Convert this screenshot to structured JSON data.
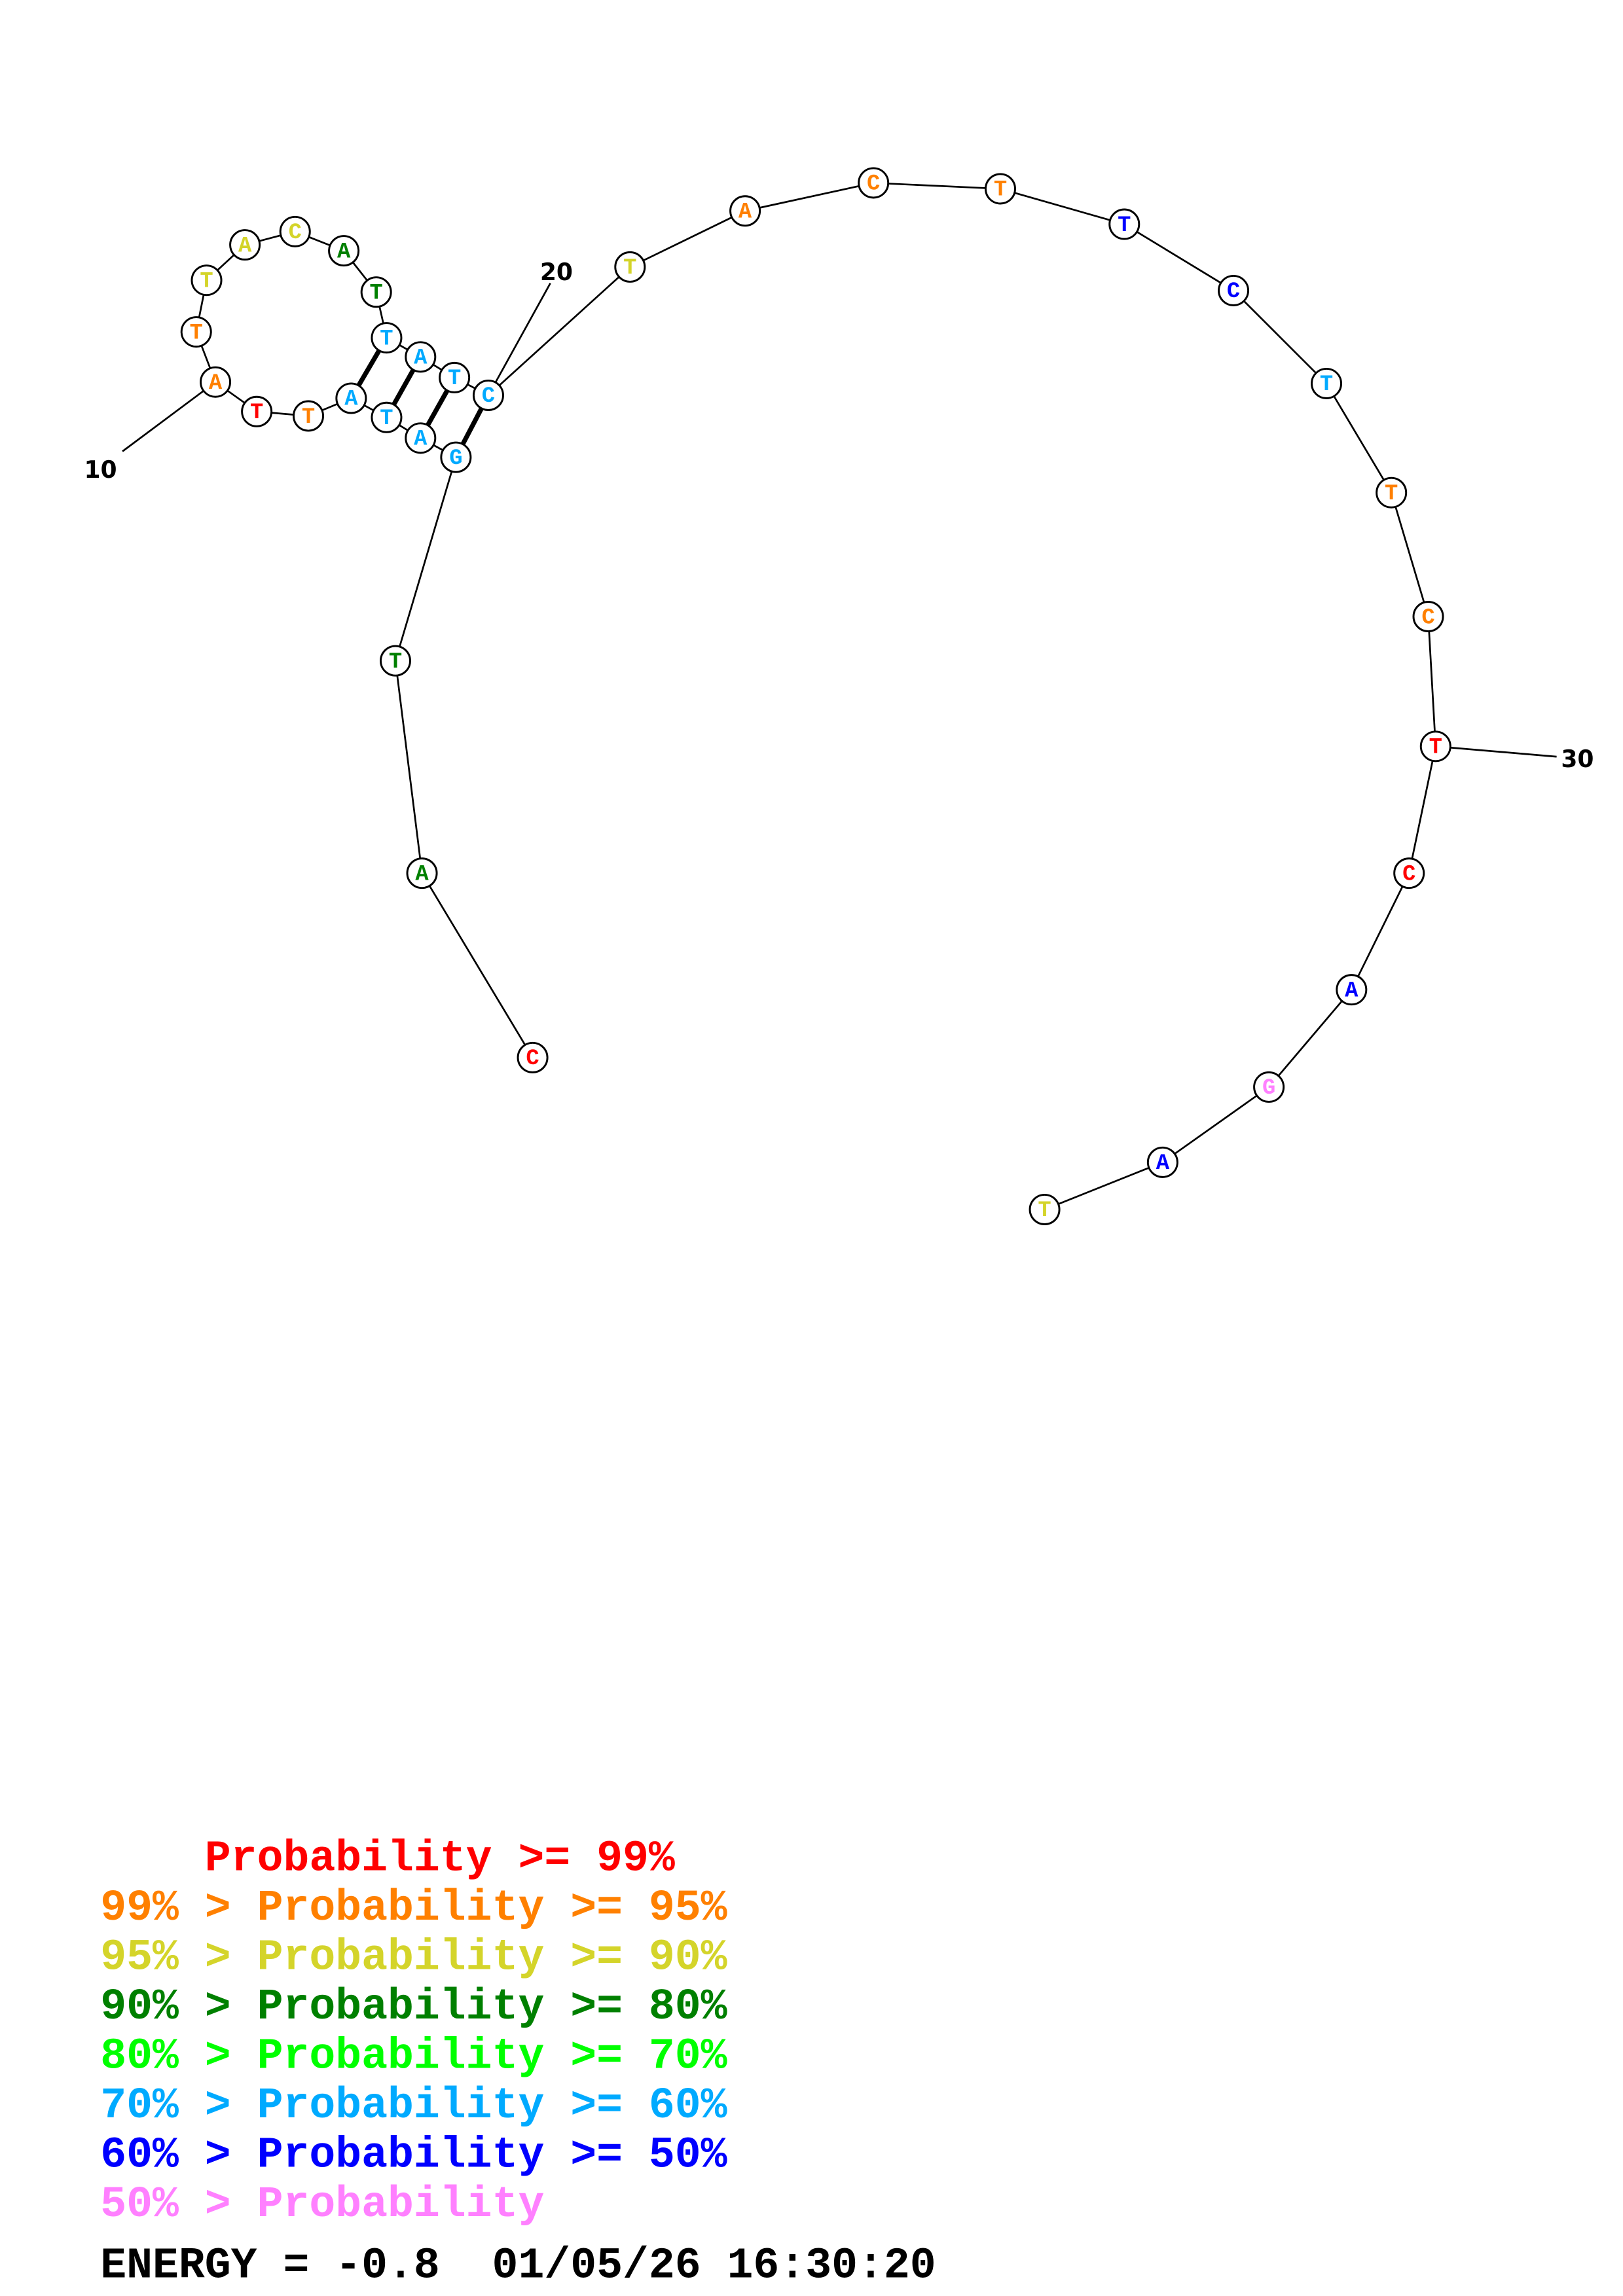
{
  "diagram": {
    "sequence": [
      {
        "base": "C",
        "tier": 0
      },
      {
        "base": "A",
        "tier": 3
      },
      {
        "base": "T",
        "tier": 3
      },
      {
        "base": "G",
        "tier": 5
      },
      {
        "base": "A",
        "tier": 5
      },
      {
        "base": "T",
        "tier": 5
      },
      {
        "base": "A",
        "tier": 5
      },
      {
        "base": "T",
        "tier": 1
      },
      {
        "base": "T",
        "tier": 0
      },
      {
        "base": "A",
        "tier": 1
      },
      {
        "base": "T",
        "tier": 1
      },
      {
        "base": "T",
        "tier": 2
      },
      {
        "base": "A",
        "tier": 2
      },
      {
        "base": "C",
        "tier": 2
      },
      {
        "base": "A",
        "tier": 3
      },
      {
        "base": "T",
        "tier": 3
      },
      {
        "base": "T",
        "tier": 5
      },
      {
        "base": "A",
        "tier": 5
      },
      {
        "base": "T",
        "tier": 5
      },
      {
        "base": "C",
        "tier": 5
      },
      {
        "base": "T",
        "tier": 2
      },
      {
        "base": "A",
        "tier": 1
      },
      {
        "base": "C",
        "tier": 1
      },
      {
        "base": "T",
        "tier": 1
      },
      {
        "base": "T",
        "tier": 6
      },
      {
        "base": "C",
        "tier": 6
      },
      {
        "base": "T",
        "tier": 5
      },
      {
        "base": "T",
        "tier": 1
      },
      {
        "base": "C",
        "tier": 1
      },
      {
        "base": "T",
        "tier": 0
      },
      {
        "base": "C",
        "tier": 0
      },
      {
        "base": "A",
        "tier": 6
      },
      {
        "base": "G",
        "tier": 7
      },
      {
        "base": "A",
        "tier": 6
      },
      {
        "base": "T",
        "tier": 2
      }
    ],
    "pairs": [
      [
        4,
        20
      ],
      [
        5,
        19
      ],
      [
        6,
        18
      ],
      [
        7,
        17
      ]
    ],
    "position_labels": [
      "10",
      "20",
      "30"
    ]
  },
  "legend": {
    "colors": [
      "#ff0000",
      "#ff8000",
      "#d4d42a",
      "#008000",
      "#00ff00",
      "#00aaff",
      "#0000ff",
      "#ff80ff"
    ],
    "lines": [
      "    Probability >= 99%",
      "99% > Probability >= 95%",
      "95% > Probability >= 90%",
      "90% > Probability >= 80%",
      "80% > Probability >= 70%",
      "70% > Probability >= 60%",
      "60% > Probability >= 50%",
      "50% > Probability"
    ],
    "energy_line": "ENERGY = -0.8  01/05/26 16:30:20"
  }
}
